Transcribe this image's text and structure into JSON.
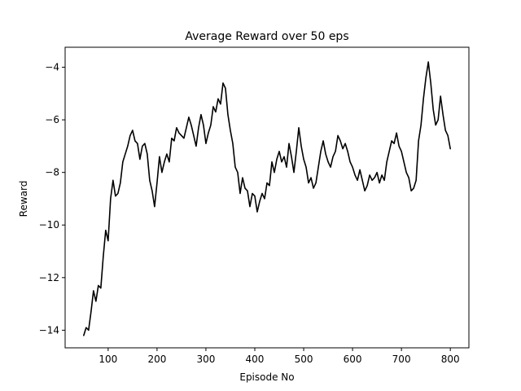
{
  "chart_data": {
    "type": "line",
    "title": "Average Reward over 50 eps",
    "xlabel": "Episode No",
    "ylabel": "Reward",
    "xlim": [
      12,
      838
    ],
    "ylim": [
      -14.67,
      -3.24
    ],
    "xticks": [
      100,
      200,
      300,
      400,
      500,
      600,
      700,
      800
    ],
    "yticks": [
      -14,
      -12,
      -10,
      -8,
      -6,
      -4
    ],
    "grid": false,
    "series": [
      {
        "color": "#000000",
        "x": [
          50,
          55,
          60,
          65,
          70,
          75,
          80,
          85,
          90,
          95,
          100,
          105,
          110,
          115,
          120,
          125,
          130,
          135,
          140,
          145,
          150,
          155,
          160,
          165,
          170,
          175,
          180,
          185,
          190,
          195,
          200,
          205,
          210,
          215,
          220,
          225,
          230,
          235,
          240,
          245,
          250,
          255,
          260,
          265,
          270,
          275,
          280,
          285,
          290,
          295,
          300,
          305,
          310,
          315,
          320,
          325,
          330,
          335,
          340,
          345,
          350,
          355,
          360,
          365,
          370,
          375,
          380,
          385,
          390,
          395,
          400,
          405,
          410,
          415,
          420,
          425,
          430,
          435,
          440,
          445,
          450,
          455,
          460,
          465,
          470,
          475,
          480,
          485,
          490,
          495,
          500,
          505,
          510,
          515,
          520,
          525,
          530,
          535,
          540,
          545,
          550,
          555,
          560,
          565,
          570,
          575,
          580,
          585,
          590,
          595,
          600,
          605,
          610,
          615,
          620,
          625,
          630,
          635,
          640,
          645,
          650,
          655,
          660,
          665,
          670,
          675,
          680,
          685,
          690,
          695,
          700,
          705,
          710,
          715,
          720,
          725,
          730,
          735,
          740,
          745,
          750,
          755,
          760,
          765,
          770,
          775,
          780,
          785,
          790,
          795,
          800
        ],
        "y": [
          -14.2,
          -13.9,
          -14.0,
          -13.3,
          -12.5,
          -12.9,
          -12.3,
          -12.4,
          -11.2,
          -10.2,
          -10.6,
          -9.0,
          -8.3,
          -8.9,
          -8.8,
          -8.4,
          -7.6,
          -7.3,
          -7.0,
          -6.6,
          -6.4,
          -6.8,
          -6.9,
          -7.5,
          -7.0,
          -6.9,
          -7.3,
          -8.3,
          -8.7,
          -9.3,
          -8.4,
          -7.4,
          -8.0,
          -7.6,
          -7.3,
          -7.6,
          -6.7,
          -6.8,
          -6.3,
          -6.5,
          -6.6,
          -6.7,
          -6.3,
          -5.9,
          -6.2,
          -6.6,
          -7.0,
          -6.3,
          -5.8,
          -6.2,
          -6.9,
          -6.5,
          -6.2,
          -5.5,
          -5.7,
          -5.2,
          -5.4,
          -4.6,
          -4.8,
          -5.8,
          -6.4,
          -6.9,
          -7.8,
          -8.0,
          -8.8,
          -8.2,
          -8.6,
          -8.7,
          -9.3,
          -8.8,
          -8.9,
          -9.5,
          -9.1,
          -8.8,
          -9.0,
          -8.4,
          -8.5,
          -7.6,
          -8.0,
          -7.5,
          -7.2,
          -7.6,
          -7.4,
          -7.8,
          -6.9,
          -7.4,
          -8.0,
          -7.2,
          -6.3,
          -7.0,
          -7.5,
          -7.8,
          -8.4,
          -8.2,
          -8.6,
          -8.4,
          -7.8,
          -7.2,
          -6.8,
          -7.3,
          -7.6,
          -7.8,
          -7.4,
          -7.2,
          -6.6,
          -6.8,
          -7.1,
          -6.9,
          -7.2,
          -7.6,
          -7.8,
          -8.1,
          -8.3,
          -7.9,
          -8.3,
          -8.7,
          -8.5,
          -8.1,
          -8.3,
          -8.2,
          -8.0,
          -8.4,
          -8.1,
          -8.3,
          -7.6,
          -7.2,
          -6.8,
          -6.9,
          -6.5,
          -7.0,
          -7.2,
          -7.6,
          -8.0,
          -8.2,
          -8.7,
          -8.6,
          -8.3,
          -6.8,
          -6.2,
          -5.2,
          -4.4,
          -3.8,
          -4.6,
          -5.6,
          -6.2,
          -6.0,
          -5.1,
          -5.8,
          -6.4,
          -6.6,
          -7.1
        ]
      }
    ]
  }
}
